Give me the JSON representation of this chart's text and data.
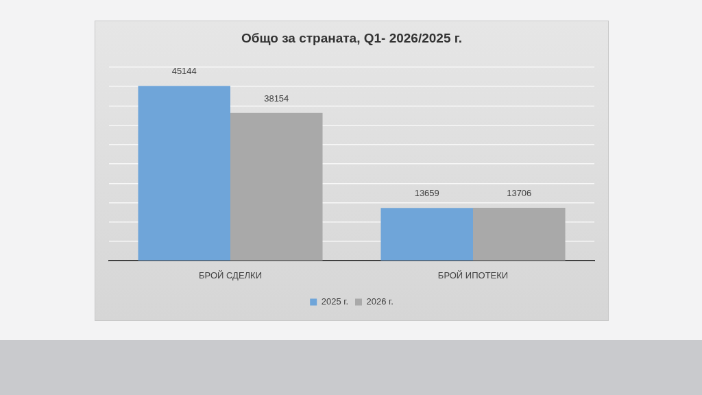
{
  "chart_data": {
    "type": "bar",
    "title": "Общо за страната, Q1- 2026/2025 г.",
    "categories": [
      "БРОЙ СДЕЛКИ",
      "БРОЙ ИПОТЕКИ"
    ],
    "series": [
      {
        "name": "2025 г.",
        "color": "#6fa5d9",
        "values": [
          45144,
          13659
        ]
      },
      {
        "name": "2026 г.",
        "color": "#a9a9a9",
        "values": [
          38154,
          13706
        ]
      }
    ],
    "ylim": [
      0,
      50000
    ],
    "yticks": [
      {
        "value": 0,
        "label": null
      },
      {
        "value": 5000,
        "label": null
      },
      {
        "value": 10000,
        "label": null
      },
      {
        "value": 15000,
        "label": null
      },
      {
        "value": 20000,
        "label": null
      },
      {
        "value": 25000,
        "label": null
      },
      {
        "value": 30000,
        "label": null
      },
      {
        "value": 35000,
        "label": null
      },
      {
        "value": 40000,
        "label": null
      },
      {
        "value": 45000,
        "label": null
      },
      {
        "value": 50000,
        "label": null
      }
    ],
    "tick_labels": "x",
    "grid": "y",
    "legend": "bottom",
    "data_labels": true
  }
}
